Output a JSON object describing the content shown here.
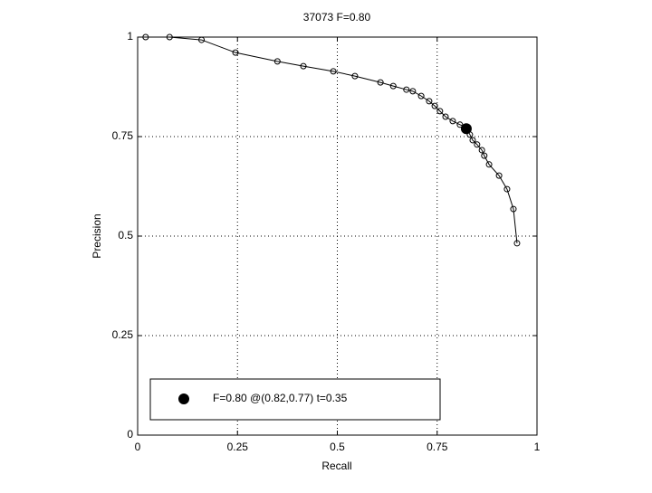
{
  "chart_data": {
    "type": "line",
    "title": "37073 F=0.80",
    "xlabel": "Recall",
    "ylabel": "Precision",
    "xlim": [
      0,
      1
    ],
    "ylim": [
      0,
      1
    ],
    "xticks": [
      0,
      0.25,
      0.5,
      0.75,
      1
    ],
    "yticks": [
      0,
      0.25,
      0.5,
      0.75,
      1
    ],
    "grid": true,
    "series": [
      {
        "color": "#000000",
        "marker": "open-circle",
        "x": [
          0.02,
          0.08,
          0.16,
          0.245,
          0.35,
          0.415,
          0.49,
          0.544,
          0.608,
          0.64,
          0.673,
          0.689,
          0.71,
          0.73,
          0.744,
          0.757,
          0.771,
          0.789,
          0.807,
          0.823,
          0.832,
          0.839,
          0.85,
          0.862,
          0.868,
          0.88,
          0.905,
          0.925,
          0.941,
          0.95
        ],
        "values": [
          1.0,
          1.0,
          0.993,
          0.961,
          0.939,
          0.927,
          0.914,
          0.902,
          0.886,
          0.877,
          0.868,
          0.864,
          0.852,
          0.839,
          0.827,
          0.814,
          0.8,
          0.789,
          0.78,
          0.773,
          0.755,
          0.741,
          0.73,
          0.716,
          0.702,
          0.68,
          0.652,
          0.618,
          0.568,
          0.482
        ]
      },
      {
        "name": "F=0.80 @(0.82,0.77) t=0.35",
        "color": "#000000",
        "marker": "filled-circle",
        "x": [
          0.823
        ],
        "values": [
          0.77
        ]
      }
    ]
  }
}
